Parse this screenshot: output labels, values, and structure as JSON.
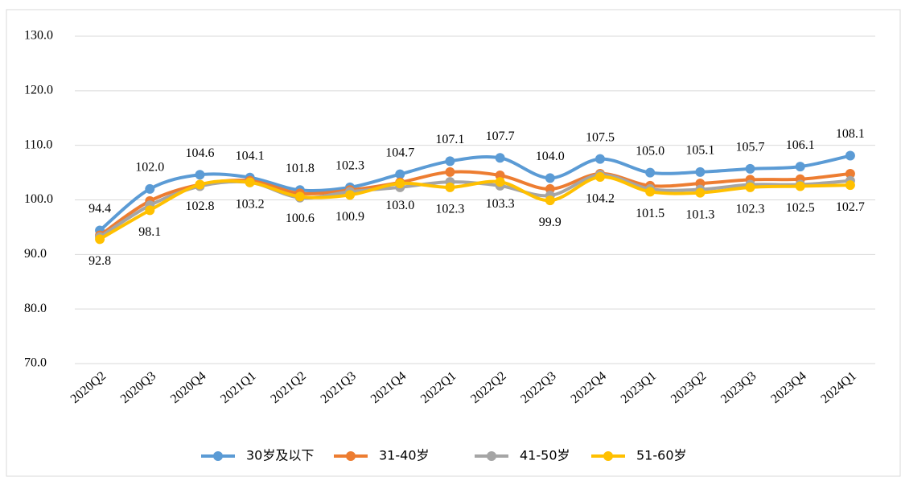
{
  "chart_data": {
    "type": "line",
    "categories": [
      "2020Q2",
      "2020Q3",
      "2020Q4",
      "2021Q1",
      "2021Q2",
      "2021Q3",
      "2021Q4",
      "2022Q1",
      "2022Q2",
      "2022Q3",
      "2022Q4",
      "2023Q1",
      "2023Q2",
      "2023Q3",
      "2023Q4",
      "2024Q1"
    ],
    "series": [
      {
        "name": "30岁及以下",
        "color": "#5b9bd5",
        "values": [
          94.4,
          102.0,
          104.6,
          104.1,
          101.8,
          102.3,
          104.7,
          107.1,
          107.7,
          104.0,
          107.5,
          105.0,
          105.1,
          105.7,
          106.1,
          108.1
        ],
        "value_labels": [
          "94.4",
          "102.0",
          "104.6",
          "104.1",
          "101.8",
          "102.3",
          "104.7",
          "107.1",
          "107.7",
          "104.0",
          "107.5",
          "105.0",
          "105.1",
          "105.7",
          "106.1",
          "108.1"
        ]
      },
      {
        "name": "31-40岁",
        "color": "#ed7d31",
        "values": [
          93.5,
          99.8,
          102.8,
          103.5,
          101.2,
          101.8,
          103.2,
          105.1,
          104.5,
          102.0,
          104.8,
          102.6,
          103.0,
          103.7,
          103.8,
          104.8
        ]
      },
      {
        "name": "41-50岁",
        "color": "#a5a5a5",
        "values": [
          93.2,
          99.0,
          102.5,
          103.2,
          100.4,
          101.5,
          102.3,
          103.3,
          102.6,
          100.8,
          104.6,
          102.0,
          101.9,
          102.8,
          102.8,
          103.5
        ]
      },
      {
        "name": "51-60岁",
        "color": "#ffc000",
        "values": [
          92.8,
          98.1,
          102.8,
          103.2,
          100.6,
          100.9,
          103.0,
          102.3,
          103.3,
          99.9,
          104.2,
          101.5,
          101.3,
          102.3,
          102.5,
          102.7
        ],
        "value_labels": [
          "92.8",
          "98.1",
          "102.8",
          "103.2",
          "100.6",
          "100.9",
          "103.0",
          "102.3",
          "103.3",
          "99.9",
          "104.2",
          "101.5",
          "101.3",
          "102.3",
          "102.5",
          "102.7"
        ]
      }
    ],
    "ylim": [
      70,
      130
    ],
    "yticks": [
      {
        "value": 70,
        "label": "70.0"
      },
      {
        "value": 80,
        "label": "80.0"
      },
      {
        "value": 90,
        "label": "90.0"
      },
      {
        "value": 100,
        "label": "100.0"
      },
      {
        "value": 110,
        "label": "110.0"
      },
      {
        "value": 120,
        "label": "120.0"
      },
      {
        "value": 130,
        "label": "130.0"
      }
    ],
    "grid": true,
    "legend": "bottom"
  }
}
